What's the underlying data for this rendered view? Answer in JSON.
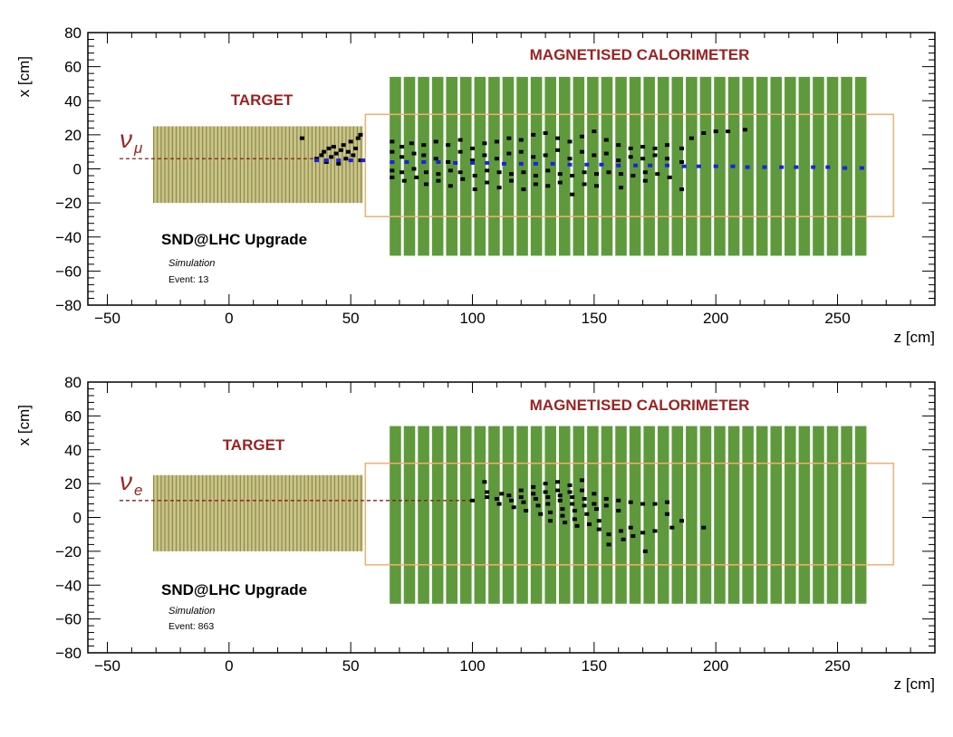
{
  "chart_data": [
    {
      "type": "scatter",
      "xlabel": "z [cm]",
      "ylabel": "x [cm]",
      "xlim": [
        -58,
        290
      ],
      "ylim": [
        -80,
        80
      ],
      "xticks": [
        "−50",
        "0",
        "50",
        "100",
        "150",
        "200",
        "250"
      ],
      "yticks": [
        "80",
        "60",
        "40",
        "20",
        "0",
        "−20",
        "−40",
        "−60",
        "−80"
      ],
      "xtick_values": [
        -50,
        0,
        50,
        100,
        150,
        200,
        250
      ],
      "ytick_values": [
        80,
        60,
        40,
        20,
        0,
        -20,
        -40,
        -60,
        -80
      ],
      "grid": false,
      "target_label": "TARGET",
      "calorimeter_label": "MAGNETISED CALORIMETER",
      "experiment_label": "SND@LHC Upgrade",
      "simulation_label": "Simulation",
      "event_label": "Event: 13",
      "neutrino_symbol": "ν",
      "neutrino_subscript": "μ",
      "target_region": {
        "z": [
          -31,
          55
        ],
        "x": [
          -20,
          25
        ]
      },
      "calorimeter_region": {
        "z": [
          66,
          263
        ],
        "x": [
          -51,
          54
        ]
      },
      "frame_region": {
        "z": [
          56,
          273
        ],
        "x": [
          -28,
          32
        ]
      },
      "beam_x": 6,
      "beam_z_start": -45,
      "beam_z_end": 36,
      "track_points": [
        [
          36,
          5
        ],
        [
          40,
          5
        ],
        [
          45,
          5
        ],
        [
          50,
          5
        ],
        [
          55,
          5
        ],
        [
          67,
          4
        ],
        [
          73,
          4
        ],
        [
          80,
          4
        ],
        [
          86,
          4
        ],
        [
          93,
          3.5
        ],
        [
          100,
          3.5
        ],
        [
          106,
          3.5
        ],
        [
          113,
          3
        ],
        [
          120,
          3
        ],
        [
          126,
          3
        ],
        [
          133,
          3
        ],
        [
          140,
          2.5
        ],
        [
          147,
          2.5
        ],
        [
          153,
          2.5
        ],
        [
          160,
          2
        ],
        [
          167,
          2
        ],
        [
          173,
          2
        ],
        [
          180,
          2
        ],
        [
          187,
          1.5
        ],
        [
          193,
          1.5
        ],
        [
          200,
          1.5
        ],
        [
          207,
          1.5
        ],
        [
          213,
          1
        ],
        [
          220,
          1
        ],
        [
          227,
          1
        ],
        [
          233,
          1
        ],
        [
          240,
          1
        ],
        [
          246,
          1
        ],
        [
          253,
          0.5
        ],
        [
          260,
          0.5
        ]
      ],
      "hit_points": [
        [
          30,
          18
        ],
        [
          36,
          6
        ],
        [
          38,
          8
        ],
        [
          39,
          10
        ],
        [
          40,
          4
        ],
        [
          41,
          12
        ],
        [
          42,
          7
        ],
        [
          43,
          13
        ],
        [
          44,
          9
        ],
        [
          45,
          3
        ],
        [
          46,
          11
        ],
        [
          47,
          14
        ],
        [
          48,
          6
        ],
        [
          49,
          10
        ],
        [
          50,
          16
        ],
        [
          51,
          8
        ],
        [
          52,
          12
        ],
        [
          53,
          18
        ],
        [
          54,
          5
        ],
        [
          54,
          20
        ],
        [
          67,
          16
        ],
        [
          67,
          10
        ],
        [
          67,
          -1
        ],
        [
          67,
          -5
        ],
        [
          71,
          13
        ],
        [
          71,
          7
        ],
        [
          71,
          -2
        ],
        [
          72,
          -7
        ],
        [
          75,
          15
        ],
        [
          76,
          9
        ],
        [
          76,
          0
        ],
        [
          77,
          -5
        ],
        [
          80,
          14
        ],
        [
          80,
          8
        ],
        [
          81,
          -2
        ],
        [
          81,
          -9
        ],
        [
          85,
          16
        ],
        [
          85,
          6
        ],
        [
          86,
          -3
        ],
        [
          86,
          -7
        ],
        [
          90,
          14
        ],
        [
          90,
          4
        ],
        [
          91,
          -1
        ],
        [
          91,
          -10
        ],
        [
          95,
          17
        ],
        [
          95,
          10
        ],
        [
          95,
          -2
        ],
        [
          96,
          -6
        ],
        [
          100,
          12
        ],
        [
          100,
          5
        ],
        [
          101,
          -4
        ],
        [
          101,
          -12
        ],
        [
          105,
          15
        ],
        [
          105,
          8
        ],
        [
          106,
          -1
        ],
        [
          106,
          -8
        ],
        [
          110,
          16
        ],
        [
          110,
          6
        ],
        [
          111,
          -2
        ],
        [
          111,
          -11
        ],
        [
          115,
          18
        ],
        [
          115,
          9
        ],
        [
          116,
          -3
        ],
        [
          116,
          -7
        ],
        [
          120,
          17
        ],
        [
          120,
          10
        ],
        [
          121,
          -2
        ],
        [
          121,
          -12
        ],
        [
          125,
          20
        ],
        [
          125,
          7
        ],
        [
          126,
          -4
        ],
        [
          126,
          -9
        ],
        [
          130,
          21
        ],
        [
          130,
          8
        ],
        [
          131,
          -1
        ],
        [
          131,
          -10
        ],
        [
          135,
          18
        ],
        [
          135,
          11
        ],
        [
          136,
          -3
        ],
        [
          136,
          -8
        ],
        [
          140,
          16
        ],
        [
          140,
          6
        ],
        [
          141,
          -4
        ],
        [
          141,
          -15
        ],
        [
          145,
          19
        ],
        [
          145,
          10
        ],
        [
          146,
          -2
        ],
        [
          146,
          -9
        ],
        [
          150,
          22
        ],
        [
          150,
          8
        ],
        [
          151,
          -3
        ],
        [
          151,
          -10
        ],
        [
          155,
          17
        ],
        [
          155,
          9
        ],
        [
          156,
          -2
        ],
        [
          160,
          14
        ],
        [
          160,
          5
        ],
        [
          161,
          -3
        ],
        [
          161,
          -11
        ],
        [
          165,
          12
        ],
        [
          165,
          7
        ],
        [
          166,
          -4
        ],
        [
          170,
          13
        ],
        [
          170,
          6
        ],
        [
          171,
          -2
        ],
        [
          171,
          -7
        ],
        [
          175,
          12
        ],
        [
          175,
          8
        ],
        [
          176,
          -3
        ],
        [
          180,
          14
        ],
        [
          180,
          6
        ],
        [
          181,
          -5
        ],
        [
          186,
          12
        ],
        [
          186,
          4
        ],
        [
          186,
          -12
        ],
        [
          190,
          18
        ],
        [
          195,
          21
        ],
        [
          200,
          22
        ],
        [
          205,
          22
        ],
        [
          212,
          23
        ]
      ]
    },
    {
      "type": "scatter",
      "xlabel": "z [cm]",
      "ylabel": "x [cm]",
      "xlim": [
        -58,
        290
      ],
      "ylim": [
        -80,
        80
      ],
      "xticks": [
        "−50",
        "0",
        "50",
        "100",
        "150",
        "200",
        "250"
      ],
      "yticks": [
        "80",
        "60",
        "40",
        "20",
        "0",
        "−20",
        "−40",
        "−60",
        "−80"
      ],
      "xtick_values": [
        -50,
        0,
        50,
        100,
        150,
        200,
        250
      ],
      "ytick_values": [
        80,
        60,
        40,
        20,
        0,
        -20,
        -40,
        -60,
        -80
      ],
      "grid": false,
      "target_label": "TARGET",
      "calorimeter_label": "MAGNETISED CALORIMETER",
      "experiment_label": "SND@LHC Upgrade",
      "simulation_label": "Simulation",
      "event_label": "Event: 863",
      "neutrino_symbol": "ν",
      "neutrino_subscript": "e",
      "target_region": {
        "z": [
          -31,
          55
        ],
        "x": [
          -20,
          25
        ]
      },
      "calorimeter_region": {
        "z": [
          66,
          263
        ],
        "x": [
          -51,
          54
        ]
      },
      "frame_region": {
        "z": [
          56,
          273
        ],
        "x": [
          -28,
          32
        ]
      },
      "beam_x": 10,
      "beam_z_start": -45,
      "beam_z_end": 100,
      "track_points": [],
      "hit_points": [
        [
          100,
          10
        ],
        [
          105,
          21
        ],
        [
          106,
          15
        ],
        [
          106,
          12
        ],
        [
          110,
          11
        ],
        [
          111,
          8
        ],
        [
          112,
          14
        ],
        [
          115,
          13
        ],
        [
          116,
          10
        ],
        [
          117,
          6
        ],
        [
          120,
          16
        ],
        [
          120,
          12
        ],
        [
          121,
          9
        ],
        [
          122,
          4
        ],
        [
          125,
          18
        ],
        [
          125,
          14
        ],
        [
          126,
          11
        ],
        [
          127,
          7
        ],
        [
          128,
          2
        ],
        [
          130,
          20
        ],
        [
          130,
          15
        ],
        [
          131,
          12
        ],
        [
          131,
          8
        ],
        [
          132,
          3
        ],
        [
          132,
          -2
        ],
        [
          135,
          21
        ],
        [
          135,
          16
        ],
        [
          136,
          13
        ],
        [
          136,
          10
        ],
        [
          137,
          5
        ],
        [
          137,
          1
        ],
        [
          138,
          -3
        ],
        [
          140,
          19
        ],
        [
          140,
          15
        ],
        [
          141,
          12
        ],
        [
          141,
          8
        ],
        [
          142,
          4
        ],
        [
          142,
          -1
        ],
        [
          143,
          -5
        ],
        [
          145,
          22
        ],
        [
          145,
          16
        ],
        [
          146,
          11
        ],
        [
          146,
          7
        ],
        [
          147,
          2
        ],
        [
          148,
          -4
        ],
        [
          150,
          14
        ],
        [
          150,
          8
        ],
        [
          151,
          5
        ],
        [
          152,
          -2
        ],
        [
          152,
          -7
        ],
        [
          155,
          11
        ],
        [
          155,
          7
        ],
        [
          156,
          -10
        ],
        [
          156,
          -16
        ],
        [
          160,
          10
        ],
        [
          160,
          4
        ],
        [
          161,
          -8
        ],
        [
          162,
          -13
        ],
        [
          165,
          9
        ],
        [
          165,
          -6
        ],
        [
          166,
          -11
        ],
        [
          170,
          8
        ],
        [
          170,
          -9
        ],
        [
          171,
          -20
        ],
        [
          175,
          8
        ],
        [
          175,
          -8
        ],
        [
          180,
          9
        ],
        [
          180,
          2
        ],
        [
          182,
          -6
        ],
        [
          186,
          -2
        ],
        [
          195,
          -6
        ]
      ]
    }
  ]
}
